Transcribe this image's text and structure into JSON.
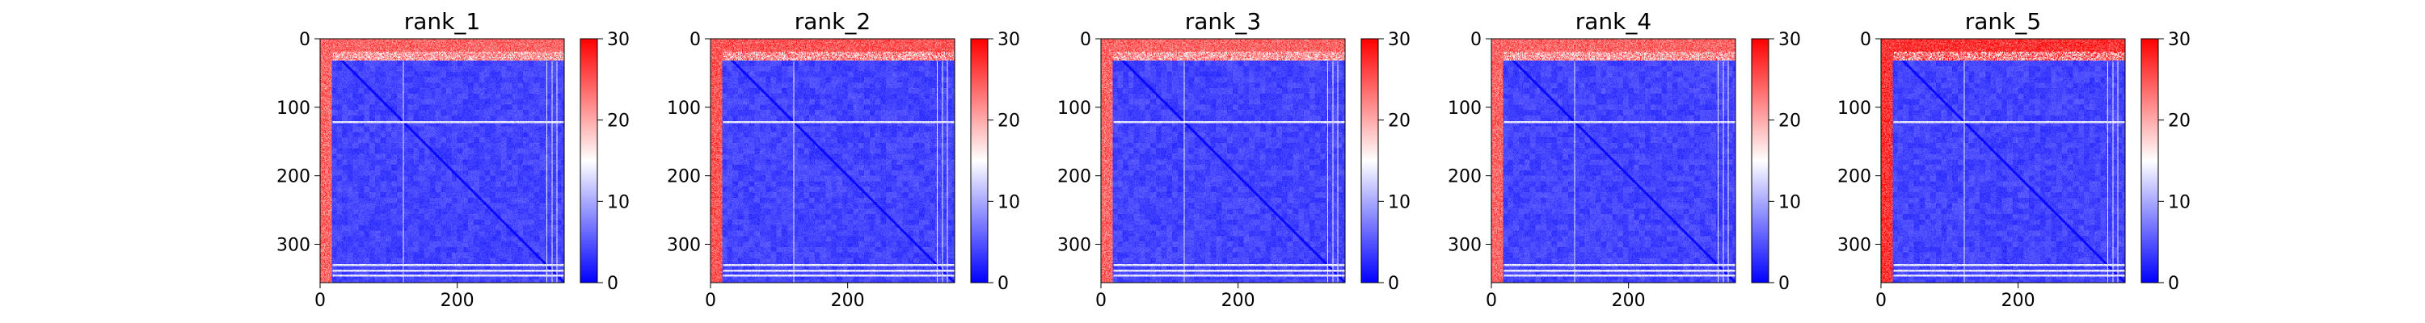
{
  "chart_data": [
    {
      "type": "heatmap",
      "title": "rank_1",
      "xlabel": "",
      "ylabel": "",
      "x_ticks": [
        0,
        200
      ],
      "y_ticks": [
        0,
        100,
        200,
        300
      ],
      "xlim": [
        0,
        356
      ],
      "ylim": [
        356,
        0
      ],
      "size": 356,
      "colormap": "bwr",
      "colorbar": {
        "range": [
          0,
          30
        ],
        "ticks": [
          0,
          10,
          20,
          30
        ]
      },
      "structure": {
        "left_band_end": 17,
        "top_band_end": 32,
        "band_value": 24,
        "body_value": 4,
        "stripe_rows": [
          121,
          330,
          338,
          345
        ]
      }
    },
    {
      "type": "heatmap",
      "title": "rank_2",
      "xlabel": "",
      "ylabel": "",
      "x_ticks": [
        0,
        200
      ],
      "y_ticks": [
        0,
        100,
        200,
        300
      ],
      "xlim": [
        0,
        356
      ],
      "ylim": [
        356,
        0
      ],
      "size": 356,
      "colormap": "bwr",
      "colorbar": {
        "range": [
          0,
          30
        ],
        "ticks": [
          0,
          10,
          20,
          30
        ]
      },
      "structure": {
        "left_band_end": 17,
        "top_band_end": 32,
        "band_value": 25,
        "body_value": 4,
        "stripe_rows": [
          121,
          330,
          338,
          345
        ]
      }
    },
    {
      "type": "heatmap",
      "title": "rank_3",
      "xlabel": "",
      "ylabel": "",
      "x_ticks": [
        0,
        200
      ],
      "y_ticks": [
        0,
        100,
        200,
        300
      ],
      "xlim": [
        0,
        356
      ],
      "ylim": [
        356,
        0
      ],
      "size": 356,
      "colormap": "bwr",
      "colorbar": {
        "range": [
          0,
          30
        ],
        "ticks": [
          0,
          10,
          20,
          30
        ]
      },
      "structure": {
        "left_band_end": 17,
        "top_band_end": 32,
        "band_value": 24,
        "body_value": 4,
        "stripe_rows": [
          121,
          330,
          338,
          345
        ]
      }
    },
    {
      "type": "heatmap",
      "title": "rank_4",
      "xlabel": "",
      "ylabel": "",
      "x_ticks": [
        0,
        200
      ],
      "y_ticks": [
        0,
        100,
        200,
        300
      ],
      "xlim": [
        0,
        356
      ],
      "ylim": [
        356,
        0
      ],
      "size": 356,
      "colormap": "bwr",
      "colorbar": {
        "range": [
          0,
          30
        ],
        "ticks": [
          0,
          10,
          20,
          30
        ]
      },
      "structure": {
        "left_band_end": 17,
        "top_band_end": 32,
        "band_value": 24,
        "body_value": 4,
        "stripe_rows": [
          121,
          330,
          338,
          345
        ]
      }
    },
    {
      "type": "heatmap",
      "title": "rank_5",
      "xlabel": "",
      "ylabel": "",
      "x_ticks": [
        0,
        200
      ],
      "y_ticks": [
        0,
        100,
        200,
        300
      ],
      "xlim": [
        0,
        356
      ],
      "ylim": [
        356,
        0
      ],
      "size": 356,
      "colormap": "bwr",
      "colorbar": {
        "range": [
          0,
          30
        ],
        "ticks": [
          0,
          10,
          20,
          30
        ]
      },
      "structure": {
        "left_band_end": 17,
        "top_band_end": 32,
        "band_value": 27,
        "body_value": 4,
        "stripe_rows": [
          121,
          330,
          338,
          345
        ]
      }
    }
  ]
}
